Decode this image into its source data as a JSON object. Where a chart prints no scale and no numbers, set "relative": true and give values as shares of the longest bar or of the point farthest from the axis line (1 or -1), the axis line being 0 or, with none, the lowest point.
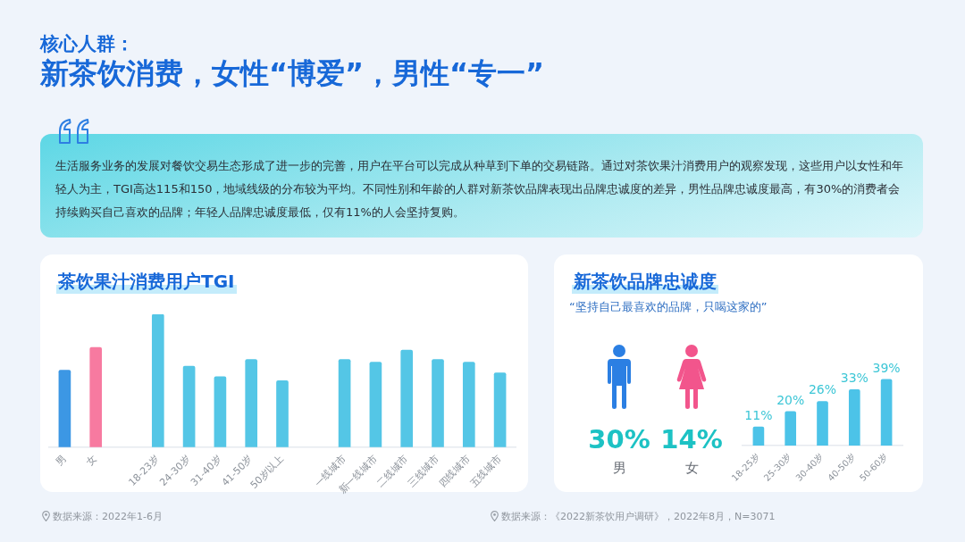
{
  "chart_data": [
    {
      "type": "other",
      "subtitle": "核心人群：",
      "title": "新茶饮消费，女性“博爱”，男性“专一”",
      "annotations": [
        "生活服务业务的发展对餐饮交易生态形成了进一步的完善，用户在平台可以完成从种草到下单的交易链路。通过对茶饮果汁消费用户的观察发现，这些用户以女性和年轻人为主，TGI高达115和150，地域线级的分布较为平均。不同性别和年龄的人群对新茶饮品牌表现出品牌忠诚度的差异，男性品牌忠诚度最高，有30%的消费者会持续购买自己喜欢的品牌；年轻人品牌忠诚度最低，仅有11%的人会坚持复购。"
      ]
    },
    {
      "type": "bar",
      "title": "茶饮果汁消费用户TGI",
      "relative": true,
      "categories": [
        "男",
        "女",
        null,
        "18-23岁",
        "24-30岁",
        "31-40岁",
        "41-50岁",
        "50岁以上",
        null,
        "一线城市",
        "新一线城市",
        "二线城市",
        "三线城市",
        "四线城市",
        "五线城市"
      ],
      "values": [
        0.58,
        0.75,
        null,
        1,
        0.61,
        0.53,
        0.66,
        0.5,
        null,
        0.66,
        0.64,
        0.73,
        0.66,
        0.64,
        0.56
      ],
      "colors": [
        "#3c97e4",
        "#f77aa0",
        null,
        "#54c6e6",
        "#54c6e6",
        "#54c6e6",
        "#54c6e6",
        "#54c6e6",
        null,
        "#54c6e6",
        "#54c6e6",
        "#54c6e6",
        "#54c6e6",
        "#54c6e6",
        "#54c6e6"
      ],
      "annotations": [
        "数据来源：2022年1-6月"
      ]
    },
    {
      "type": "other",
      "title": "新茶饮品牌忠诚度",
      "subtitle": "“坚持自己最喜欢的品牌，只喝这家的”",
      "categories": [
        "男",
        "女"
      ],
      "values": [
        30,
        14
      ],
      "value_labels": [
        "30%",
        "14%"
      ],
      "colors": [
        "#2b7fe3",
        "#f2558c"
      ]
    },
    {
      "type": "bar",
      "categories": [
        "18-25岁",
        "25-30岁",
        "30-40岁",
        "40-50岁",
        "50-60岁"
      ],
      "values": [
        11,
        20,
        26,
        33,
        39
      ],
      "value_labels": [
        "11%",
        "20%",
        "26%",
        "33%",
        "39%"
      ],
      "color": "#4cc3e8",
      "annotations": [
        "数据来源：《2022新茶饮用户调研》，2022年8月，N=3071"
      ]
    }
  ]
}
